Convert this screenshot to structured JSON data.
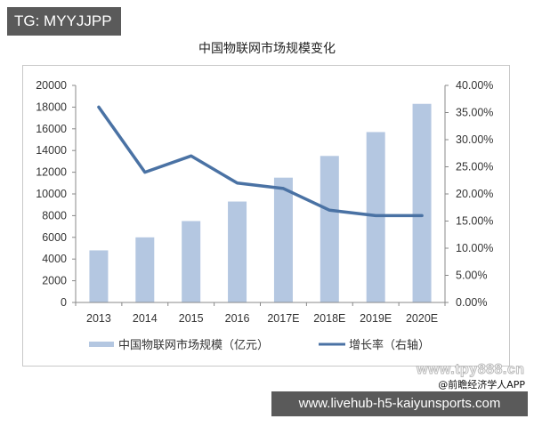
{
  "badge": {
    "text": "TG: MYYJJPP"
  },
  "footer": {
    "watermark_site": "www.tpy888.cn",
    "source": "@前瞻经济学人APP",
    "url": "www.livehub-h5-kaiyunsports.com"
  },
  "colors": {
    "bar": "#b4c7e1",
    "line": "#4a72a4",
    "axis": "#888888"
  },
  "chart_data": {
    "type": "bar",
    "title": "中国物联网市场规模变化",
    "categories": [
      "2013",
      "2014",
      "2015",
      "2016",
      "2017E",
      "2018E",
      "2019E",
      "2020E"
    ],
    "series": [
      {
        "name": "中国物联网市场规模（亿元）",
        "type": "bar",
        "axis": "left",
        "values": [
          4800,
          6000,
          7500,
          9300,
          11500,
          13500,
          15700,
          18300
        ]
      },
      {
        "name": "增长率（右轴）",
        "type": "line",
        "axis": "right",
        "values": [
          36,
          24,
          27,
          22,
          21,
          17,
          16,
          16
        ]
      }
    ],
    "xlabel": "",
    "ylabel": "",
    "ylim": [
      0,
      20000
    ],
    "yticks": [
      "0",
      "2000",
      "4000",
      "6000",
      "8000",
      "10000",
      "12000",
      "14000",
      "16000",
      "18000",
      "20000"
    ],
    "y2lim": [
      0,
      40
    ],
    "y2ticks": [
      "0.00%",
      "5.00%",
      "10.00%",
      "15.00%",
      "20.00%",
      "25.00%",
      "30.00%",
      "35.00%",
      "40.00%"
    ],
    "grid": false,
    "legend_position": "bottom"
  }
}
